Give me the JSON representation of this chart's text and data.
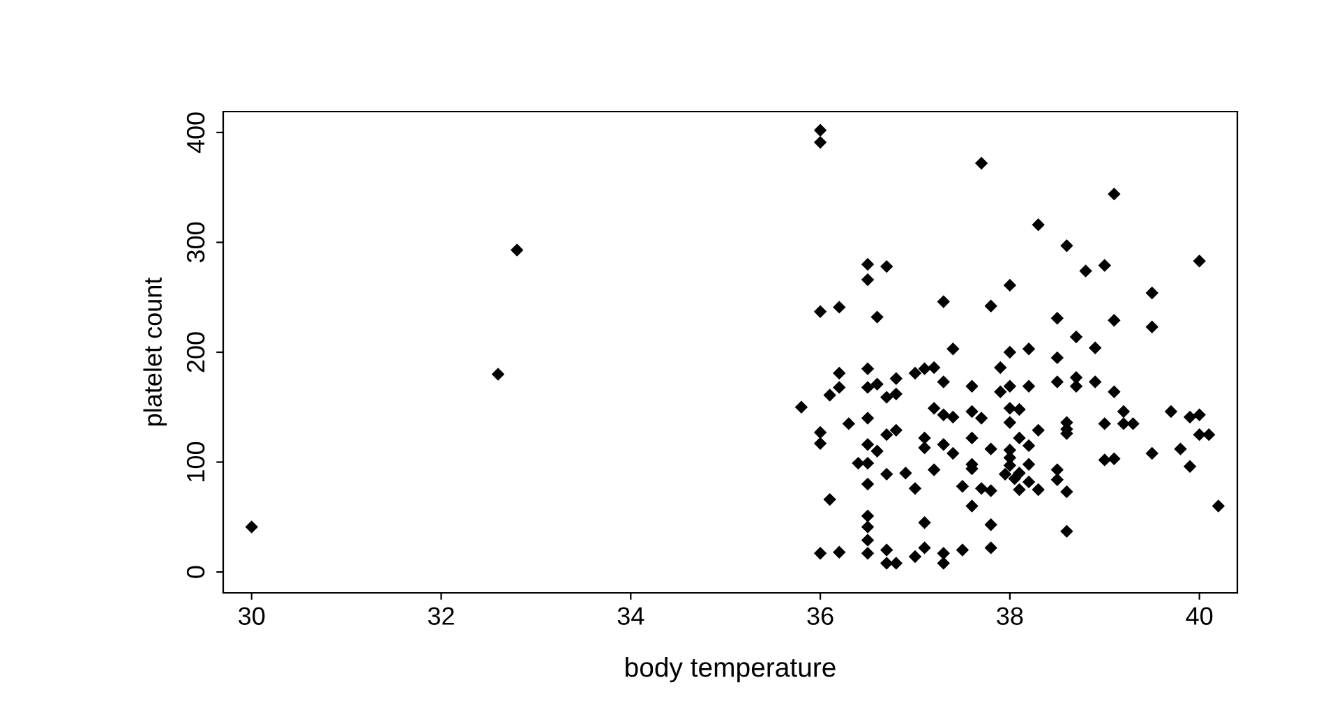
{
  "chart_data": {
    "type": "scatter",
    "xlabel": "body temperature",
    "ylabel": "platelet count",
    "marker": "diamond",
    "grid": false,
    "legend": false,
    "xlim": [
      29.7,
      40.4
    ],
    "ylim": [
      -19,
      419
    ],
    "xticks": [
      30,
      32,
      34,
      36,
      38,
      40
    ],
    "yticks": [
      0,
      100,
      200,
      300,
      400
    ],
    "series": [
      {
        "color": "#000000",
        "x": [
          30.0,
          32.6,
          32.8,
          36.0,
          36.0,
          35.8,
          36.0,
          36.2,
          36.6,
          36.5,
          36.7,
          36.5,
          38.0,
          37.7,
          37.3,
          37.8,
          37.4,
          38.0,
          36.2,
          36.5,
          37.0,
          37.1,
          37.2,
          37.9,
          36.2,
          36.5,
          36.6,
          36.8,
          37.3,
          37.6,
          37.9,
          38.0,
          36.1,
          36.7,
          36.8,
          37.2,
          37.3,
          37.4,
          37.6,
          37.7,
          38.0,
          38.0,
          36.3,
          36.5,
          36.0,
          36.0,
          36.7,
          36.8,
          37.1,
          37.1,
          36.5,
          36.6,
          37.3,
          37.4,
          37.6,
          37.8,
          38.0,
          38.0,
          38.0,
          37.95,
          38.05,
          36.4,
          36.5,
          36.7,
          36.9,
          37.2,
          37.6,
          37.6,
          36.5,
          37.0,
          37.5,
          37.7,
          37.8,
          36.1,
          37.6,
          36.5,
          36.5,
          36.5,
          37.1,
          37.8,
          36.0,
          36.2,
          36.5,
          36.7,
          36.7,
          36.8,
          37.0,
          37.1,
          37.3,
          37.3,
          37.5,
          37.8,
          39.1,
          38.3,
          38.6,
          38.8,
          39.0,
          40.0,
          39.5,
          38.5,
          39.1,
          39.5,
          38.7,
          38.9,
          38.2,
          38.5,
          38.2,
          38.5,
          38.7,
          38.7,
          38.9,
          39.1,
          38.1,
          38.3,
          38.6,
          38.6,
          38.6,
          39.0,
          39.2,
          39.2,
          39.3,
          39.7,
          39.9,
          40.0,
          40.0,
          40.1,
          38.1,
          38.2,
          38.2,
          38.1,
          38.1,
          38.3,
          38.2,
          38.5,
          38.5,
          38.6,
          39.0,
          39.1,
          39.5,
          39.8,
          39.9,
          40.2,
          38.6
        ],
        "values": [
          41,
          180,
          293,
          402,
          391,
          150,
          237,
          241,
          232,
          280,
          278,
          266,
          261,
          372,
          246,
          242,
          203,
          200,
          181,
          185,
          181,
          185,
          186,
          186,
          168,
          168,
          171,
          176,
          173,
          169,
          164,
          169,
          161,
          159,
          162,
          149,
          143,
          141,
          146,
          140,
          149,
          136,
          135,
          140,
          127,
          117,
          125,
          129,
          122,
          113,
          116,
          110,
          116,
          108,
          122,
          112,
          111,
          104,
          97,
          89,
          85,
          99,
          99,
          89,
          90,
          93,
          98,
          94,
          80,
          76,
          78,
          76,
          74,
          66,
          60,
          51,
          41,
          29,
          45,
          43,
          17,
          18,
          17,
          20,
          8,
          8,
          14,
          22,
          17,
          8,
          20,
          22,
          344,
          316,
          297,
          274,
          279,
          283,
          254,
          231,
          229,
          223,
          214,
          204,
          203,
          195,
          169,
          173,
          177,
          169,
          173,
          164,
          148,
          129,
          136,
          130,
          126,
          135,
          146,
          135,
          135,
          146,
          141,
          143,
          125,
          125,
          122,
          115,
          98,
          90,
          75,
          75,
          82,
          93,
          84,
          73,
          102,
          103,
          108,
          112,
          96,
          60,
          37
        ]
      }
    ]
  }
}
